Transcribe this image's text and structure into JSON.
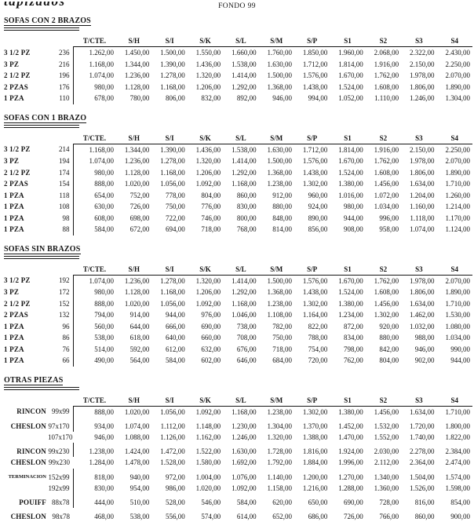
{
  "header": {
    "logo_text": "tapizados",
    "title": "FONDO 99"
  },
  "columns": [
    "T/CTE.",
    "S/H",
    "S/I",
    "S/K",
    "S/L",
    "S/M",
    "S/P",
    "S1",
    "S2",
    "S3",
    "S4"
  ],
  "sections": [
    {
      "title": "SOFAS CON 2 BRAZOS",
      "rows": [
        {
          "label": "3 1/2 PZ",
          "size": "236",
          "bar": true,
          "values": [
            "1.262,00",
            "1.450,00",
            "1.500,00",
            "1.550,00",
            "1.660,00",
            "1.760,00",
            "1.850,00",
            "1.960,00",
            "2.068,00",
            "2.322,00",
            "2.430,00"
          ]
        },
        {
          "label": "3 PZ",
          "size": "216",
          "bar": true,
          "values": [
            "1.168,00",
            "1.344,00",
            "1.390,00",
            "1.436,00",
            "1.538,00",
            "1.630,00",
            "1.712,00",
            "1.814,00",
            "1.916,00",
            "2.150,00",
            "2.250,00"
          ]
        },
        {
          "label": "2 1/2 PZ",
          "size": "196",
          "bar": true,
          "values": [
            "1.074,00",
            "1.236,00",
            "1.278,00",
            "1.320,00",
            "1.414,00",
            "1.500,00",
            "1.576,00",
            "1.670,00",
            "1.762,00",
            "1.978,00",
            "2.070,00"
          ]
        },
        {
          "label": "2 PZAS",
          "size": "176",
          "bar": true,
          "values": [
            "980,00",
            "1.128,00",
            "1.168,00",
            "1.206,00",
            "1.292,00",
            "1.368,00",
            "1.438,00",
            "1.524,00",
            "1.608,00",
            "1.806,00",
            "1.890,00"
          ]
        },
        {
          "label": "1 PZA",
          "size": "110",
          "bar": true,
          "values": [
            "678,00",
            "780,00",
            "806,00",
            "832,00",
            "892,00",
            "946,00",
            "994,00",
            "1.052,00",
            "1.110,00",
            "1.246,00",
            "1.304,00"
          ]
        }
      ]
    },
    {
      "title": "SOFAS CON 1 BRAZO",
      "rows": [
        {
          "label": "3 1/2 PZ",
          "size": "214",
          "bar": true,
          "values": [
            "1.168,00",
            "1.344,00",
            "1.390,00",
            "1.436,00",
            "1.538,00",
            "1.630,00",
            "1.712,00",
            "1.814,00",
            "1.916,00",
            "2.150,00",
            "2.250,00"
          ]
        },
        {
          "label": "3 PZ",
          "size": "194",
          "bar": true,
          "values": [
            "1.074,00",
            "1.236,00",
            "1.278,00",
            "1.320,00",
            "1.414,00",
            "1.500,00",
            "1.576,00",
            "1.670,00",
            "1.762,00",
            "1.978,00",
            "2.070,00"
          ]
        },
        {
          "label": "2 1/2 PZ",
          "size": "174",
          "bar": true,
          "values": [
            "980,00",
            "1.128,00",
            "1.168,00",
            "1.206,00",
            "1.292,00",
            "1.368,00",
            "1.438,00",
            "1.524,00",
            "1.608,00",
            "1.806,00",
            "1.890,00"
          ]
        },
        {
          "label": "2 PZAS",
          "size": "154",
          "bar": true,
          "values": [
            "888,00",
            "1.020,00",
            "1.056,00",
            "1.092,00",
            "1.168,00",
            "1.238,00",
            "1.302,00",
            "1.380,00",
            "1.456,00",
            "1.634,00",
            "1.710,00"
          ]
        },
        {
          "label": "1 PZA",
          "size": "118",
          "bar": true,
          "values": [
            "654,00",
            "752,00",
            "778,00",
            "804,00",
            "860,00",
            "912,00",
            "960,00",
            "1.016,00",
            "1.072,00",
            "1.204,00",
            "1.260,00"
          ]
        },
        {
          "label": "1 PZA",
          "size": "108",
          "bar": true,
          "values": [
            "630,00",
            "726,00",
            "750,00",
            "776,00",
            "830,00",
            "880,00",
            "924,00",
            "980,00",
            "1.034,00",
            "1.160,00",
            "1.214,00"
          ]
        },
        {
          "label": "1 PZA",
          "size": "98",
          "bar": true,
          "values": [
            "608,00",
            "698,00",
            "722,00",
            "746,00",
            "800,00",
            "848,00",
            "890,00",
            "944,00",
            "996,00",
            "1.118,00",
            "1.170,00"
          ]
        },
        {
          "label": "1 PZA",
          "size": "88",
          "bar": true,
          "values": [
            "584,00",
            "672,00",
            "694,00",
            "718,00",
            "768,00",
            "814,00",
            "856,00",
            "908,00",
            "958,00",
            "1.074,00",
            "1.124,00"
          ]
        }
      ]
    },
    {
      "title": "SOFAS SIN BRAZOS",
      "rows": [
        {
          "label": "3 1/2 PZ",
          "size": "192",
          "bar": true,
          "values": [
            "1.074,00",
            "1.236,00",
            "1.278,00",
            "1.320,00",
            "1.414,00",
            "1.500,00",
            "1.576,00",
            "1.670,00",
            "1.762,00",
            "1.978,00",
            "2.070,00"
          ]
        },
        {
          "label": "3 PZ",
          "size": "172",
          "bar": true,
          "values": [
            "980,00",
            "1.128,00",
            "1.168,00",
            "1.206,00",
            "1.292,00",
            "1.368,00",
            "1.438,00",
            "1.524,00",
            "1.608,00",
            "1.806,00",
            "1.890,00"
          ]
        },
        {
          "label": "2 1/2 PZ",
          "size": "152",
          "bar": true,
          "values": [
            "888,00",
            "1.020,00",
            "1.056,00",
            "1.092,00",
            "1.168,00",
            "1.238,00",
            "1.302,00",
            "1.380,00",
            "1.456,00",
            "1.634,00",
            "1.710,00"
          ]
        },
        {
          "label": "2 PZAS",
          "size": "132",
          "bar": true,
          "values": [
            "794,00",
            "914,00",
            "944,00",
            "976,00",
            "1.046,00",
            "1.108,00",
            "1.164,00",
            "1.234,00",
            "1.302,00",
            "1.462,00",
            "1.530,00"
          ]
        },
        {
          "label": "1 PZA",
          "size": "96",
          "bar": true,
          "values": [
            "560,00",
            "644,00",
            "666,00",
            "690,00",
            "738,00",
            "782,00",
            "822,00",
            "872,00",
            "920,00",
            "1.032,00",
            "1.080,00"
          ]
        },
        {
          "label": "1 PZA",
          "size": "86",
          "bar": true,
          "values": [
            "538,00",
            "618,00",
            "640,00",
            "660,00",
            "708,00",
            "750,00",
            "788,00",
            "834,00",
            "880,00",
            "988,00",
            "1.034,00"
          ]
        },
        {
          "label": "1 PZA",
          "size": "76",
          "bar": true,
          "values": [
            "514,00",
            "592,00",
            "612,00",
            "632,00",
            "676,00",
            "718,00",
            "754,00",
            "798,00",
            "842,00",
            "946,00",
            "990,00"
          ]
        },
        {
          "label": "1 PZA",
          "size": "66",
          "bar": true,
          "values": [
            "490,00",
            "564,00",
            "584,00",
            "602,00",
            "646,00",
            "684,00",
            "720,00",
            "762,00",
            "804,00",
            "902,00",
            "944,00"
          ]
        }
      ]
    },
    {
      "title": "OTRAS PIEZAS",
      "label_align": "right",
      "rows": [
        {
          "label": "RINCON",
          "size": "99x99",
          "bar": true,
          "values": [
            "888,00",
            "1.020,00",
            "1.056,00",
            "1.092,00",
            "1.168,00",
            "1.238,00",
            "1.302,00",
            "1.380,00",
            "1.456,00",
            "1.634,00",
            "1.710,00"
          ]
        },
        {
          "label": "CHESLON",
          "size": "97x170",
          "bar": true,
          "gap": true,
          "values": [
            "934,00",
            "1.074,00",
            "1.112,00",
            "1.148,00",
            "1.230,00",
            "1.304,00",
            "1.370,00",
            "1.452,00",
            "1.532,00",
            "1.720,00",
            "1.800,00"
          ]
        },
        {
          "label": "",
          "size": "107x170",
          "values": [
            "946,00",
            "1.088,00",
            "1.126,00",
            "1.162,00",
            "1.246,00",
            "1.320,00",
            "1.388,00",
            "1.470,00",
            "1.552,00",
            "1.740,00",
            "1.822,00"
          ]
        },
        {
          "label": "RINCON",
          "size": "99x230",
          "bar": true,
          "gap": true,
          "values": [
            "1.238,00",
            "1.424,00",
            "1.472,00",
            "1.522,00",
            "1.630,00",
            "1.728,00",
            "1.816,00",
            "1.924,00",
            "2.030,00",
            "2.278,00",
            "2.384,00"
          ]
        },
        {
          "label": "CHESLON",
          "size": "99x230",
          "values": [
            "1.284,00",
            "1.478,00",
            "1.528,00",
            "1.580,00",
            "1.692,00",
            "1.792,00",
            "1.884,00",
            "1.996,00",
            "2.112,00",
            "2.364,00",
            "2.474,00"
          ]
        },
        {
          "label": "TERMINACION",
          "size": "152x99",
          "bar": true,
          "gap": true,
          "small": true,
          "values": [
            "818,00",
            "940,00",
            "972,00",
            "1.004,00",
            "1.076,00",
            "1.140,00",
            "1.200,00",
            "1.270,00",
            "1.340,00",
            "1.504,00",
            "1.574,00"
          ]
        },
        {
          "label": "",
          "size": "192x99",
          "bar": true,
          "values": [
            "830,00",
            "954,00",
            "986,00",
            "1.020,00",
            "1.092,00",
            "1.158,00",
            "1.216,00",
            "1.288,00",
            "1.360,00",
            "1.526,00",
            "1.598,00"
          ]
        },
        {
          "label": "POUIFF",
          "size": "88x78",
          "bar": true,
          "gap": true,
          "values": [
            "444,00",
            "510,00",
            "528,00",
            "546,00",
            "584,00",
            "620,00",
            "650,00",
            "690,00",
            "728,00",
            "816,00",
            "854,00"
          ]
        },
        {
          "label": "CHESLON",
          "size": "98x78",
          "gap": true,
          "values": [
            "468,00",
            "538,00",
            "556,00",
            "574,00",
            "614,00",
            "652,00",
            "686,00",
            "726,00",
            "766,00",
            "860,00",
            "900,00"
          ]
        },
        {
          "label": "",
          "size": "108x78",
          "values": [
            "490,00",
            "564,00",
            "584,00",
            "602,00",
            "646,00",
            "684,00",
            "720,00",
            "762,00",
            "804,00",
            "902,00",
            "944,00"
          ]
        },
        {
          "label": "",
          "size": "118x78",
          "values": [
            "514,00",
            "592,00",
            "612,00",
            "632,00",
            "676,00",
            "718,00",
            "754,00",
            "798,00",
            "842,00",
            "946,00",
            "990,00"
          ]
        }
      ]
    }
  ]
}
